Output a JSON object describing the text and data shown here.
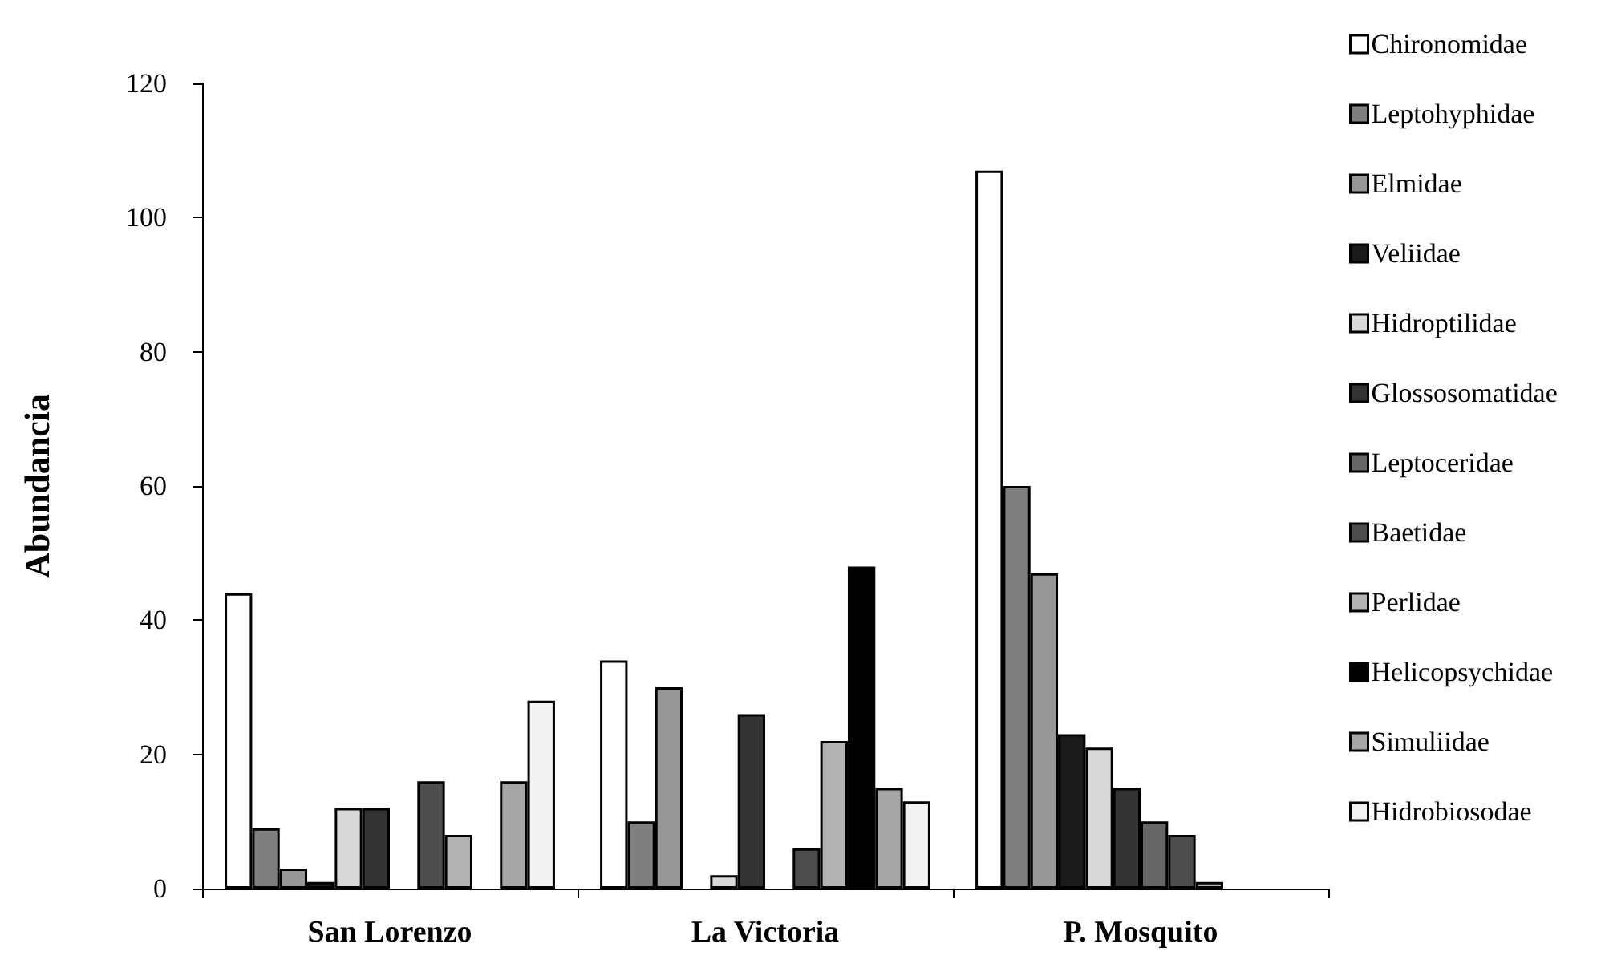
{
  "chart_data": {
    "type": "bar",
    "ylabel": "Abundancia",
    "categories": [
      "San Lorenzo",
      "La Victoria",
      "P. Mosquito"
    ],
    "series": [
      {
        "name": "Chironomidae",
        "color": "#ffffff",
        "values": [
          44,
          34,
          107
        ]
      },
      {
        "name": "Leptohyphidae",
        "color": "#7f7f7f",
        "values": [
          9,
          10,
          60
        ]
      },
      {
        "name": "Elmidae",
        "color": "#969696",
        "values": [
          3,
          30,
          47
        ]
      },
      {
        "name": "Veliidae",
        "color": "#1a1a1a",
        "values": [
          1,
          null,
          23
        ]
      },
      {
        "name": "Hidroptilidae",
        "color": "#d9d9d9",
        "values": [
          12,
          2,
          21
        ]
      },
      {
        "name": "Glossosomatidae",
        "color": "#333333",
        "values": [
          12,
          26,
          15
        ]
      },
      {
        "name": "Leptoceridae",
        "color": "#666666",
        "values": [
          null,
          null,
          10
        ]
      },
      {
        "name": "Baetidae",
        "color": "#4d4d4d",
        "values": [
          16,
          6,
          8
        ]
      },
      {
        "name": "Perlidae",
        "color": "#b3b3b3",
        "values": [
          8,
          22,
          1
        ]
      },
      {
        "name": "Helicopsychidae",
        "color": "#000000",
        "values": [
          null,
          48,
          null
        ]
      },
      {
        "name": "Simuliidae",
        "color": "#a6a6a6",
        "values": [
          16,
          15,
          null
        ]
      },
      {
        "name": "Hidrobiosodae",
        "color": "#f2f2f2",
        "values": [
          28,
          13,
          null
        ]
      }
    ],
    "ylim": [
      0,
      120
    ],
    "yticks": [
      0,
      20,
      40,
      60,
      80,
      100,
      120
    ],
    "grid": false,
    "legend": "right"
  }
}
